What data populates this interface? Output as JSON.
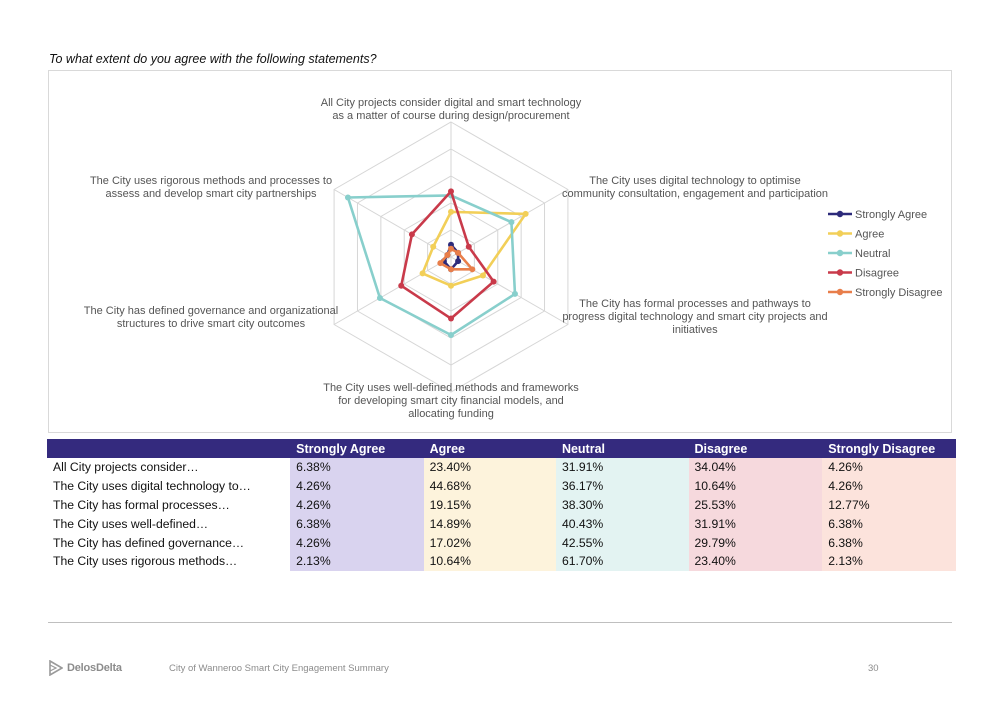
{
  "question": "To what extent do you agree with the following statements?",
  "chart_data": {
    "type": "radar",
    "axes": [
      [
        "All City projects consider digital and smart technology",
        "as a matter of course during design/procurement"
      ],
      [
        "The City uses digital technology to optimise",
        "community consultation, engagement and participation"
      ],
      [
        "The City has formal processes and pathways to",
        "progress digital technology and smart city projects and",
        "initiatives"
      ],
      [
        "The City uses well-defined methods and frameworks",
        "for developing smart city financial models, and",
        "allocating funding"
      ],
      [
        "The City has defined governance and organizational",
        "structures to drive smart city outcomes"
      ],
      [
        "The City uses rigorous methods and processes to",
        "assess and develop smart city partnerships"
      ]
    ],
    "rmax": 70,
    "grid_levels": 5,
    "series": [
      {
        "name": "Strongly Agree",
        "color": "#2c2a7a",
        "values": [
          6.38,
          4.26,
          4.26,
          6.38,
          4.26,
          2.13
        ]
      },
      {
        "name": "Agree",
        "color": "#f2cf58",
        "values": [
          23.4,
          44.68,
          19.15,
          14.89,
          17.02,
          10.64
        ]
      },
      {
        "name": "Neutral",
        "color": "#88cfcc",
        "values": [
          31.91,
          36.17,
          38.3,
          40.43,
          42.55,
          61.7
        ]
      },
      {
        "name": "Disagree",
        "color": "#c93a4a",
        "values": [
          34.04,
          10.64,
          25.53,
          31.91,
          29.79,
          23.4
        ]
      },
      {
        "name": "Strongly Disagree",
        "color": "#e87e4a",
        "values": [
          4.26,
          4.26,
          12.77,
          6.38,
          6.38,
          2.13
        ]
      }
    ],
    "legend_position": "right"
  },
  "table": {
    "headers": [
      "",
      "Strongly Agree",
      "Agree",
      "Neutral",
      "Disagree",
      "Strongly Disagree"
    ],
    "column_colors": [
      "#ffffff",
      "#d9d3ef",
      "#fdf3dc",
      "#e3f3f2",
      "#f6d9dd",
      "#fce3dc"
    ],
    "rows": [
      [
        "All City projects consider…",
        "6.38%",
        "23.40%",
        "31.91%",
        "34.04%",
        "4.26%"
      ],
      [
        "The City uses digital technology to…",
        "4.26%",
        "44.68%",
        "36.17%",
        "10.64%",
        "4.26%"
      ],
      [
        "The City has formal processes…",
        "4.26%",
        "19.15%",
        "38.30%",
        "25.53%",
        "12.77%"
      ],
      [
        "The City uses well-defined…",
        "6.38%",
        "14.89%",
        "40.43%",
        "31.91%",
        "6.38%"
      ],
      [
        "The City has defined governance…",
        "4.26%",
        "17.02%",
        "42.55%",
        "29.79%",
        "6.38%"
      ],
      [
        "The City uses rigorous methods…",
        "2.13%",
        "10.64%",
        "61.70%",
        "23.40%",
        "2.13%"
      ]
    ]
  },
  "footer": {
    "logo": "DelosDelta",
    "title": "City of Wanneroo Smart City Engagement Summary",
    "page": "30"
  }
}
